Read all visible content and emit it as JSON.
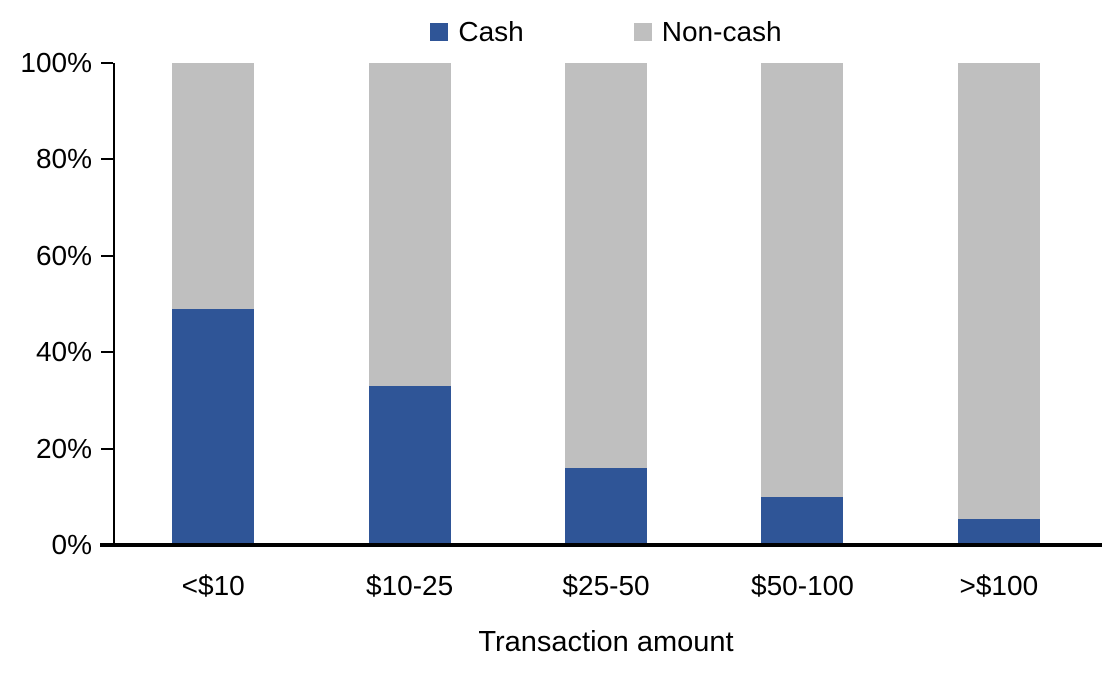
{
  "chart_data": {
    "type": "bar",
    "stacked": true,
    "percent_stacked": true,
    "title": "",
    "xlabel": "Transaction amount",
    "ylabel": "",
    "categories": [
      "<$10",
      "$10-25",
      "$25-50",
      "$50-100",
      ">$100"
    ],
    "series": [
      {
        "name": "Cash",
        "color": "#2F5597",
        "values": [
          49,
          33,
          16,
          10,
          5.5
        ]
      },
      {
        "name": "Non-cash",
        "color": "#BFBFBF",
        "values": [
          51,
          67,
          84,
          90,
          94.5
        ]
      }
    ],
    "ylim": [
      0,
      100
    ],
    "ytick_step": 20,
    "ytick_labels": [
      "0%",
      "20%",
      "40%",
      "60%",
      "80%",
      "100%"
    ],
    "legend_position": "top",
    "grid": false,
    "axis_color": "#000000",
    "text_color": "#000000",
    "background_color": "#FFFFFF"
  }
}
